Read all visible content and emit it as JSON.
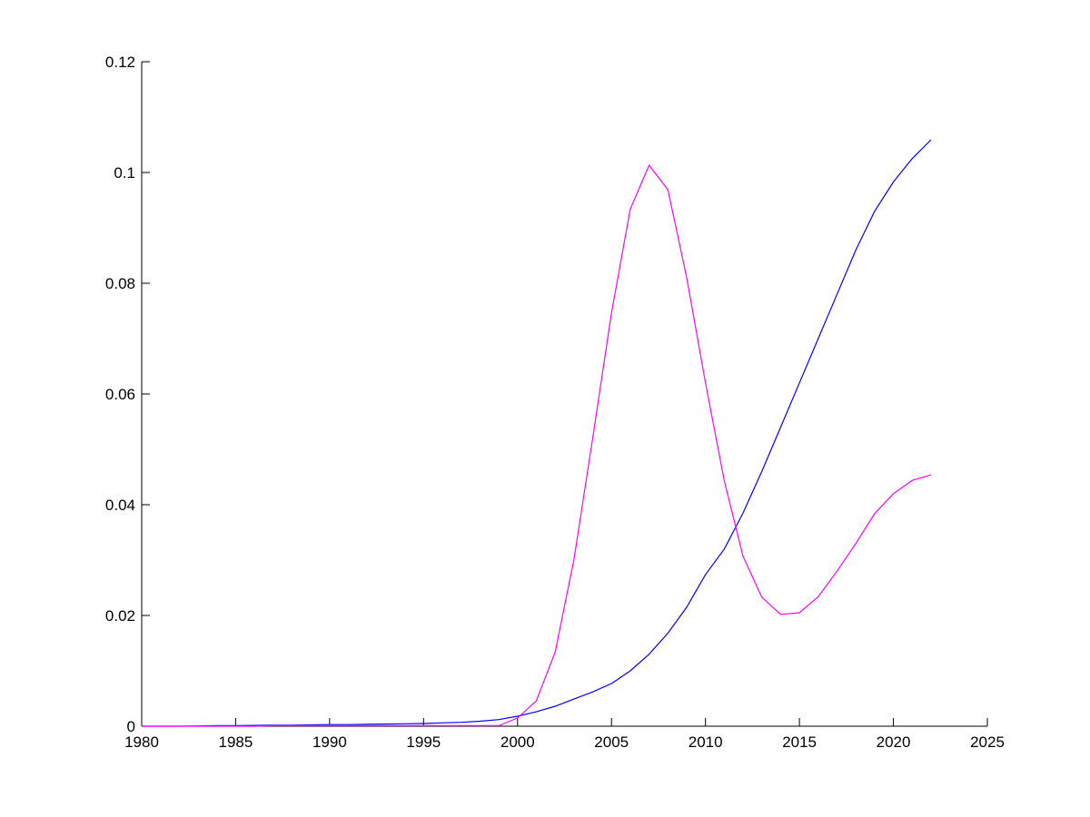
{
  "chart_data": {
    "type": "line",
    "title": "",
    "xlabel": "",
    "ylabel": "",
    "xlim": [
      1980,
      2025
    ],
    "ylim": [
      0,
      0.12
    ],
    "xticks": [
      "1980",
      "1985",
      "1990",
      "1995",
      "2000",
      "2005",
      "2010",
      "2015",
      "2020",
      "2025"
    ],
    "yticks": [
      "0",
      "0.02",
      "0.04",
      "0.06",
      "0.08",
      "0.1",
      "0.12"
    ],
    "grid": false,
    "x": [
      1980,
      1981,
      1982,
      1983,
      1984,
      1985,
      1986,
      1987,
      1988,
      1989,
      1990,
      1991,
      1992,
      1993,
      1994,
      1995,
      1996,
      1997,
      1998,
      1999,
      2000,
      2001,
      2002,
      2003,
      2004,
      2005,
      2006,
      2007,
      2008,
      2009,
      2010,
      2011,
      2012,
      2013,
      2014,
      2015,
      2016,
      2017,
      2018,
      2019,
      2020,
      2021,
      2022
    ],
    "series": [
      {
        "color": "#0000ff",
        "values": [
          0,
          0,
          0,
          5e-05,
          0.0001,
          0.0001,
          0.00015,
          0.0002,
          0.0002,
          0.00025,
          0.0003,
          0.0003,
          0.00035,
          0.0004,
          0.00045,
          0.0005,
          0.0006,
          0.0007,
          0.0009,
          0.0012,
          0.0018,
          0.0026,
          0.0036,
          0.0049,
          0.0062,
          0.0077,
          0.01,
          0.013,
          0.0168,
          0.0215,
          0.0274,
          0.032,
          0.0385,
          0.046,
          0.054,
          0.062,
          0.07,
          0.078,
          0.086,
          0.093,
          0.0983,
          0.1025,
          0.1059
        ]
      },
      {
        "color": "#ff00ff",
        "values": [
          0,
          0,
          0,
          0,
          0,
          0,
          0,
          0.0001,
          0.0001,
          0.0001,
          0.0001,
          0.0001,
          0.0001,
          0.0001,
          0.0001,
          0.0001,
          0.0001,
          0.0001,
          0.0001,
          0.0001,
          0.0015,
          0.0046,
          0.0134,
          0.03,
          0.052,
          0.0746,
          0.0934,
          0.1013,
          0.0969,
          0.081,
          0.062,
          0.0443,
          0.0307,
          0.0233,
          0.0202,
          0.0205,
          0.0234,
          0.028,
          0.033,
          0.0384,
          0.042,
          0.0444,
          0.0454
        ]
      }
    ]
  }
}
